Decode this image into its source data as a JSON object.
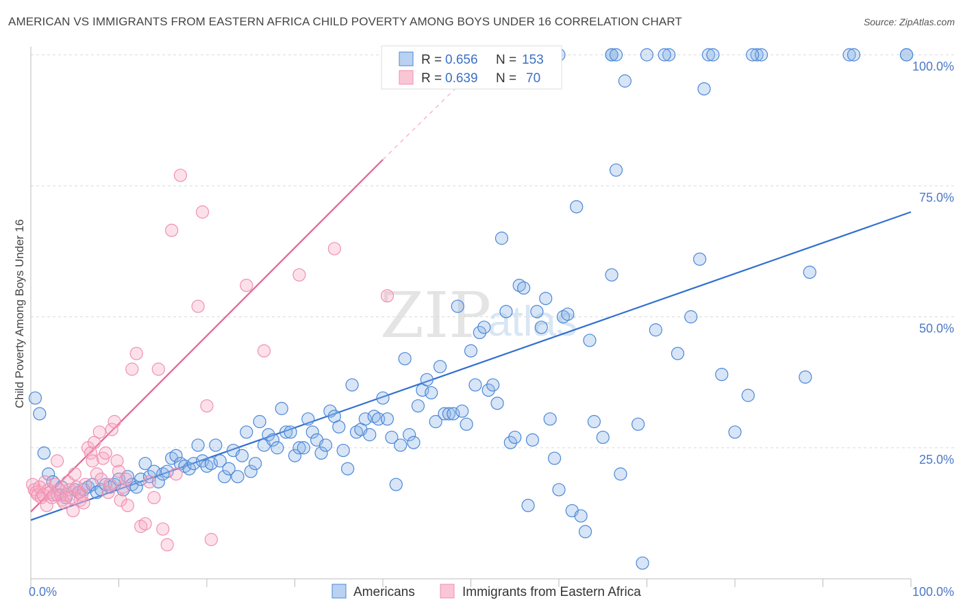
{
  "title": "AMERICAN VS IMMIGRANTS FROM EASTERN AFRICA CHILD POVERTY AMONG BOYS UNDER 16 CORRELATION CHART",
  "source": "Source: ZipAtlas.com",
  "watermark": {
    "zip": "ZIP",
    "atlas": "atlas"
  },
  "colors": {
    "americans": "#4a86d8",
    "immigrants": "#f08fb0",
    "americans_line": "#2f6fcf",
    "immigrants_line": "#e8628f",
    "tick": "#4a78c6",
    "grid": "#d9d9d9"
  },
  "legend": {
    "rows": [
      {
        "r_label": "R =",
        "r_value": "0.656",
        "n_label": "N =",
        "n_value": "153"
      },
      {
        "r_label": "R =",
        "r_value": "0.639",
        "n_label": "N =",
        "n_value": "70"
      }
    ]
  },
  "chart_data": {
    "type": "scatter",
    "title": "AMERICAN VS IMMIGRANTS FROM EASTERN AFRICA CHILD POVERTY AMONG BOYS UNDER 16 CORRELATION CHART",
    "xlabel": "",
    "ylabel": "Child Poverty Among Boys Under 16",
    "xlim": [
      0,
      100
    ],
    "ylim": [
      0,
      100
    ],
    "x_tick_labels": [
      "0.0%",
      "100.0%"
    ],
    "y_ticks": [
      25,
      50,
      75,
      100
    ],
    "y_tick_labels": [
      "25.0%",
      "50.0%",
      "75.0%",
      "100.0%"
    ],
    "grid": true,
    "legend_position": "bottom",
    "series": [
      {
        "name": "Americans",
        "stats": {
          "R": 0.656,
          "N": 153
        },
        "trend": {
          "x": [
            0,
            100
          ],
          "y": [
            11.2,
            70.0
          ]
        },
        "points": [
          [
            0.5,
            34.5
          ],
          [
            1.0,
            31.5
          ],
          [
            1.5,
            24.0
          ],
          [
            2.0,
            20.0
          ],
          [
            2.5,
            18.5
          ],
          [
            3.0,
            16.0
          ],
          [
            3.5,
            17.5
          ],
          [
            4.0,
            15.5
          ],
          [
            5.0,
            17.0
          ],
          [
            5.5,
            16.5
          ],
          [
            6.0,
            17.0
          ],
          [
            6.5,
            17.5
          ],
          [
            7.0,
            18.0
          ],
          [
            7.5,
            16.5
          ],
          [
            8.0,
            17.0
          ],
          [
            8.5,
            18.0
          ],
          [
            9.0,
            17.5
          ],
          [
            9.5,
            18.0
          ],
          [
            10.0,
            19.0
          ],
          [
            10.5,
            17.0
          ],
          [
            11.0,
            19.5
          ],
          [
            11.5,
            18.0
          ],
          [
            12.0,
            17.5
          ],
          [
            12.5,
            19.0
          ],
          [
            13.0,
            22.0
          ],
          [
            13.5,
            19.5
          ],
          [
            14.0,
            20.5
          ],
          [
            14.5,
            18.5
          ],
          [
            15.0,
            20.0
          ],
          [
            15.5,
            20.5
          ],
          [
            16.0,
            23.0
          ],
          [
            16.5,
            23.5
          ],
          [
            17.0,
            22.0
          ],
          [
            17.5,
            21.5
          ],
          [
            18.0,
            21.0
          ],
          [
            18.5,
            22.0
          ],
          [
            19.0,
            25.5
          ],
          [
            19.5,
            22.5
          ],
          [
            20.0,
            21.5
          ],
          [
            20.5,
            22.0
          ],
          [
            21.0,
            25.5
          ],
          [
            21.5,
            22.5
          ],
          [
            22.0,
            19.5
          ],
          [
            22.5,
            21.0
          ],
          [
            23.0,
            24.5
          ],
          [
            23.5,
            19.5
          ],
          [
            24.0,
            23.5
          ],
          [
            24.5,
            28.0
          ],
          [
            25.0,
            20.5
          ],
          [
            25.5,
            22.0
          ],
          [
            26.0,
            30.0
          ],
          [
            26.5,
            25.5
          ],
          [
            27.0,
            27.5
          ],
          [
            27.5,
            26.5
          ],
          [
            28.0,
            25.0
          ],
          [
            28.5,
            32.5
          ],
          [
            29.0,
            28.0
          ],
          [
            29.5,
            28.0
          ],
          [
            30.0,
            23.5
          ],
          [
            30.5,
            25.0
          ],
          [
            31.0,
            25.0
          ],
          [
            31.5,
            30.5
          ],
          [
            32.0,
            28.0
          ],
          [
            32.5,
            26.5
          ],
          [
            33.0,
            24.0
          ],
          [
            33.5,
            25.5
          ],
          [
            34.0,
            32.0
          ],
          [
            34.5,
            31.0
          ],
          [
            35.0,
            29.0
          ],
          [
            35.5,
            24.5
          ],
          [
            36.0,
            21.0
          ],
          [
            36.5,
            37.0
          ],
          [
            37.0,
            28.0
          ],
          [
            37.5,
            28.5
          ],
          [
            38.0,
            30.5
          ],
          [
            38.5,
            27.5
          ],
          [
            39.0,
            31.0
          ],
          [
            39.5,
            30.5
          ],
          [
            40.0,
            34.5
          ],
          [
            40.5,
            30.5
          ],
          [
            41.0,
            27.0
          ],
          [
            41.5,
            18.0
          ],
          [
            42.0,
            25.5
          ],
          [
            42.5,
            42.0
          ],
          [
            43.0,
            27.5
          ],
          [
            43.5,
            26.0
          ],
          [
            44.0,
            33.0
          ],
          [
            44.5,
            36.0
          ],
          [
            45.0,
            38.0
          ],
          [
            45.5,
            35.5
          ],
          [
            46.0,
            30.0
          ],
          [
            46.5,
            40.5
          ],
          [
            47.0,
            31.5
          ],
          [
            47.5,
            31.5
          ],
          [
            48.0,
            31.5
          ],
          [
            48.5,
            52.0
          ],
          [
            49.0,
            32.0
          ],
          [
            49.5,
            29.5
          ],
          [
            50.0,
            43.5
          ],
          [
            50.5,
            37.0
          ],
          [
            51.0,
            47.0
          ],
          [
            51.5,
            48.0
          ],
          [
            52.0,
            36.0
          ],
          [
            52.5,
            37.0
          ],
          [
            53.0,
            33.5
          ],
          [
            53.5,
            65.0
          ],
          [
            54.0,
            51.0
          ],
          [
            54.5,
            26.0
          ],
          [
            55.0,
            27.0
          ],
          [
            55.5,
            56.0
          ],
          [
            56.0,
            55.5
          ],
          [
            56.5,
            14.0
          ],
          [
            57.0,
            26.5
          ],
          [
            57.5,
            51.0
          ],
          [
            58.0,
            48.0
          ],
          [
            58.5,
            53.5
          ],
          [
            59.0,
            30.5
          ],
          [
            59.5,
            23.0
          ],
          [
            60.0,
            17.0
          ],
          [
            60.5,
            50.0
          ],
          [
            61.0,
            50.5
          ],
          [
            61.5,
            13.0
          ],
          [
            62.0,
            71.0
          ],
          [
            62.5,
            12.0
          ],
          [
            63.0,
            9.0
          ],
          [
            63.5,
            45.5
          ],
          [
            64.0,
            30.0
          ],
          [
            65.0,
            27.0
          ],
          [
            66.0,
            58.0
          ],
          [
            66.5,
            78.0
          ],
          [
            67.0,
            20.0
          ],
          [
            67.5,
            95.0
          ],
          [
            69.0,
            29.5
          ],
          [
            69.5,
            3.0
          ],
          [
            70.0,
            100.0
          ],
          [
            71.0,
            47.5
          ],
          [
            72.5,
            100.0
          ],
          [
            73.5,
            43.0
          ],
          [
            75.0,
            50.0
          ],
          [
            76.0,
            61.0
          ],
          [
            76.5,
            93.5
          ],
          [
            77.0,
            100.0
          ],
          [
            78.5,
            39.0
          ],
          [
            80.0,
            28.0
          ],
          [
            81.5,
            35.0
          ],
          [
            82.5,
            100.0
          ],
          [
            83.0,
            100.0
          ],
          [
            88.0,
            38.5
          ],
          [
            88.5,
            58.5
          ],
          [
            93.0,
            100.0
          ],
          [
            99.5,
            100.0
          ],
          [
            59.0,
            100.0
          ],
          [
            66.0,
            100.0
          ],
          [
            66.0,
            100.0
          ],
          [
            66.5,
            100.0
          ],
          [
            77.5,
            100.0
          ],
          [
            82.0,
            100.0
          ],
          [
            93.5,
            100.0
          ],
          [
            99.5,
            100.0
          ],
          [
            72.0,
            100.0
          ],
          [
            60.0,
            100.0
          ]
        ]
      },
      {
        "name": "Immigrants from Eastern Africa",
        "stats": {
          "R": 0.639,
          "N": 70
        },
        "trend": {
          "x": [
            0,
            40
          ],
          "y": [
            12.8,
            80.0
          ]
        },
        "trend_dashed_to": {
          "x": 48.5,
          "y": 94.0
        },
        "points": [
          [
            0.2,
            18.0
          ],
          [
            0.4,
            17.0
          ],
          [
            0.6,
            16.5
          ],
          [
            0.8,
            16.0
          ],
          [
            1.0,
            17.5
          ],
          [
            1.2,
            15.5
          ],
          [
            1.4,
            16.0
          ],
          [
            1.6,
            18.5
          ],
          [
            1.8,
            14.0
          ],
          [
            2.0,
            17.0
          ],
          [
            2.2,
            16.5
          ],
          [
            2.4,
            15.5
          ],
          [
            2.6,
            16.0
          ],
          [
            2.8,
            18.0
          ],
          [
            3.0,
            22.5
          ],
          [
            3.2,
            17.0
          ],
          [
            3.4,
            16.0
          ],
          [
            3.6,
            15.0
          ],
          [
            3.8,
            14.5
          ],
          [
            4.0,
            16.0
          ],
          [
            4.2,
            18.5
          ],
          [
            4.4,
            17.0
          ],
          [
            4.6,
            15.5
          ],
          [
            4.8,
            13.0
          ],
          [
            5.0,
            20.0
          ],
          [
            5.2,
            17.5
          ],
          [
            5.4,
            16.5
          ],
          [
            5.6,
            15.0
          ],
          [
            5.8,
            16.0
          ],
          [
            6.0,
            14.5
          ],
          [
            6.2,
            18.0
          ],
          [
            6.5,
            25.0
          ],
          [
            6.8,
            24.0
          ],
          [
            7.0,
            22.5
          ],
          [
            7.2,
            26.0
          ],
          [
            7.5,
            20.0
          ],
          [
            7.8,
            28.0
          ],
          [
            8.0,
            19.0
          ],
          [
            8.2,
            23.0
          ],
          [
            8.5,
            24.0
          ],
          [
            8.8,
            16.5
          ],
          [
            9.0,
            18.0
          ],
          [
            9.2,
            28.5
          ],
          [
            9.5,
            30.0
          ],
          [
            9.8,
            22.5
          ],
          [
            10.0,
            20.5
          ],
          [
            10.2,
            15.0
          ],
          [
            10.5,
            17.5
          ],
          [
            10.8,
            19.0
          ],
          [
            11.0,
            14.0
          ],
          [
            11.5,
            40.0
          ],
          [
            12.0,
            43.0
          ],
          [
            12.5,
            10.0
          ],
          [
            13.0,
            10.5
          ],
          [
            13.5,
            18.5
          ],
          [
            14.0,
            15.5
          ],
          [
            14.5,
            40.0
          ],
          [
            15.0,
            9.5
          ],
          [
            15.5,
            6.5
          ],
          [
            16.0,
            66.5
          ],
          [
            16.5,
            20.0
          ],
          [
            17.0,
            77.0
          ],
          [
            19.0,
            52.0
          ],
          [
            19.5,
            70.0
          ],
          [
            20.0,
            33.0
          ],
          [
            20.5,
            7.5
          ],
          [
            24.5,
            56.0
          ],
          [
            26.5,
            43.5
          ],
          [
            30.5,
            58.0
          ],
          [
            34.5,
            63.0
          ],
          [
            40.5,
            54.0
          ]
        ]
      }
    ]
  },
  "bottom_legend": [
    {
      "label": "Americans"
    },
    {
      "label": "Immigrants from Eastern Africa"
    }
  ]
}
